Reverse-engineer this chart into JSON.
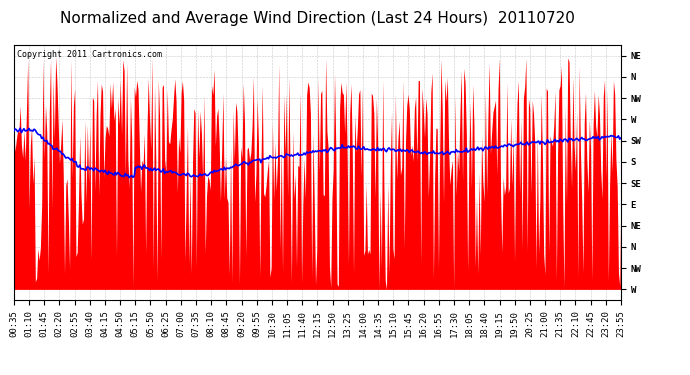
{
  "title": "Normalized and Average Wind Direction (Last 24 Hours)  20110720",
  "copyright": "Copyright 2011 Cartronics.com",
  "background_color": "#ffffff",
  "plot_bg_color": "#ffffff",
  "grid_color": "#bbbbbb",
  "red_color": "#ff0000",
  "blue_color": "#0000ff",
  "y_tick_labels": [
    "W",
    "NW",
    "N",
    "NE",
    "E",
    "SE",
    "S",
    "SW",
    "W",
    "NW",
    "N",
    "NE"
  ],
  "y_tick_values": [
    0,
    1,
    2,
    3,
    4,
    5,
    6,
    7,
    8,
    9,
    10,
    11
  ],
  "x_tick_labels": [
    "00:35",
    "01:10",
    "01:45",
    "02:20",
    "02:55",
    "03:40",
    "04:15",
    "04:50",
    "05:15",
    "05:50",
    "06:25",
    "07:00",
    "07:35",
    "08:10",
    "08:45",
    "09:20",
    "09:55",
    "10:30",
    "11:05",
    "11:40",
    "12:15",
    "12:50",
    "13:25",
    "14:00",
    "14:35",
    "15:10",
    "15:45",
    "16:20",
    "16:55",
    "17:30",
    "18:05",
    "18:40",
    "19:15",
    "19:50",
    "20:25",
    "21:00",
    "21:35",
    "22:10",
    "22:45",
    "23:20",
    "23:55"
  ],
  "ylim": [
    -0.5,
    11.5
  ],
  "n_points": 480,
  "title_fontsize": 11,
  "tick_fontsize": 6.5,
  "copyright_fontsize": 6
}
